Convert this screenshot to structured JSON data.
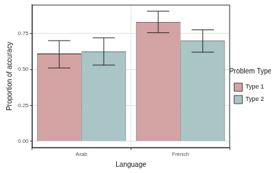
{
  "chart_data": {
    "type": "bar",
    "x_label": "Language",
    "y_label": "Proportion of accuracy",
    "categories": [
      "Arab",
      "French"
    ],
    "series": [
      {
        "name": "Type 1",
        "color": "#d3a3a3",
        "values": [
          0.61,
          0.83
        ],
        "error_low": [
          0.51,
          0.755
        ],
        "error_high": [
          0.7,
          0.905
        ]
      },
      {
        "name": "Type 2",
        "color": "#a9c5c6",
        "values": [
          0.625,
          0.7
        ],
        "error_low": [
          0.53,
          0.62
        ],
        "error_high": [
          0.72,
          0.775
        ]
      }
    ],
    "ylim": [
      -0.045,
      0.95
    ],
    "yticks": [
      {
        "value": 0,
        "label": "0.00"
      },
      {
        "value": 0.25,
        "label": "0.25"
      },
      {
        "value": 0.5,
        "label": "0.50"
      },
      {
        "value": 0.75,
        "label": "0.75"
      }
    ],
    "grid": true,
    "legend": "right",
    "legend_title": "Problem Type"
  }
}
